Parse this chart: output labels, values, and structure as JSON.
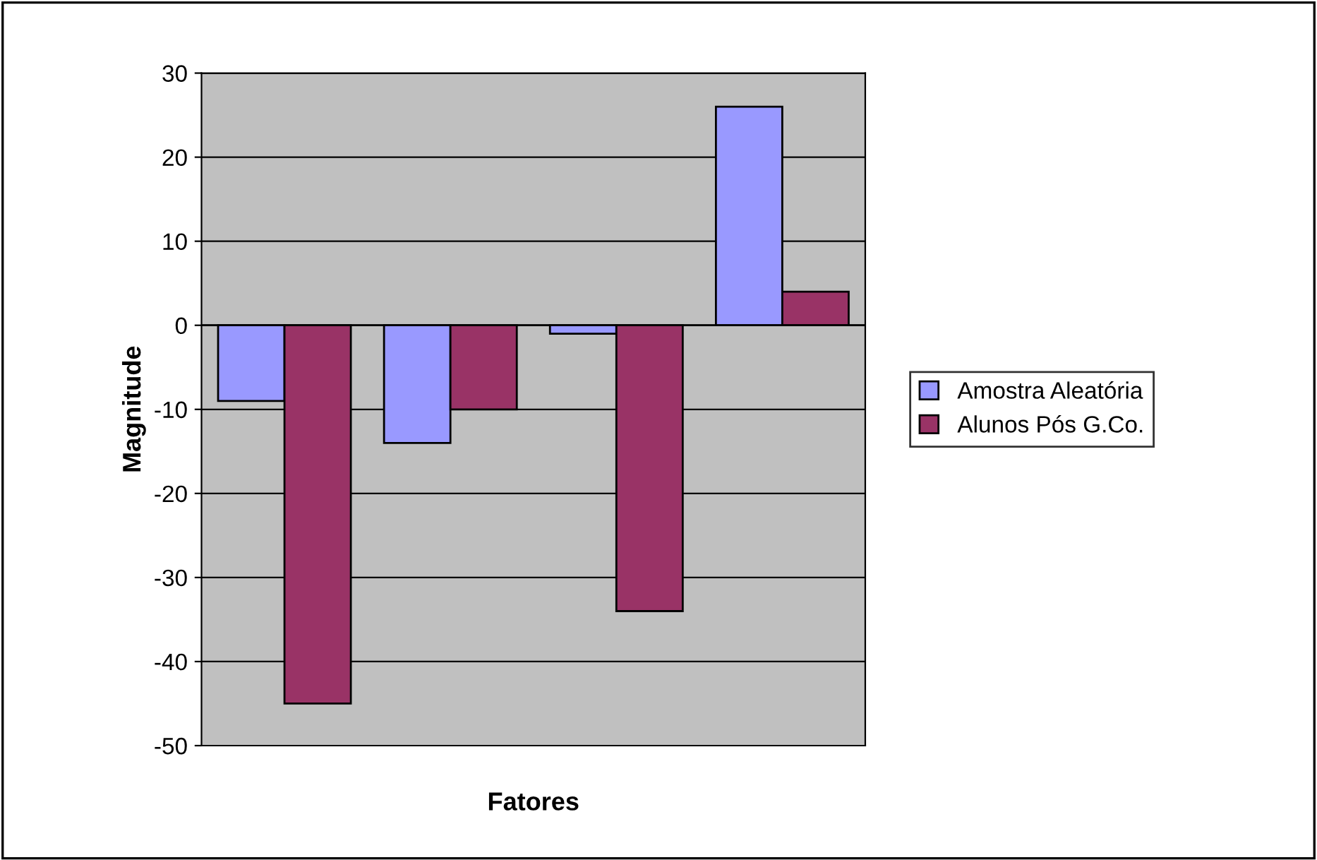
{
  "chart_data": {
    "type": "bar",
    "xlabel": "Fatores",
    "ylabel": "Magnitude",
    "categories": [
      null,
      null,
      null,
      null
    ],
    "series": [
      {
        "name": "Amostra Aleatória",
        "color": "#9999ff",
        "values": [
          -9,
          -14,
          -1,
          26
        ]
      },
      {
        "name": "Alunos Pós G.Co.",
        "color": "#993366",
        "values": [
          -45,
          -10,
          -34,
          4
        ]
      }
    ],
    "ylim": [
      -50,
      30
    ],
    "yticks": [
      -50,
      -40,
      -30,
      -20,
      -10,
      0,
      10,
      20,
      30
    ],
    "grid": "y",
    "legend": "right"
  }
}
